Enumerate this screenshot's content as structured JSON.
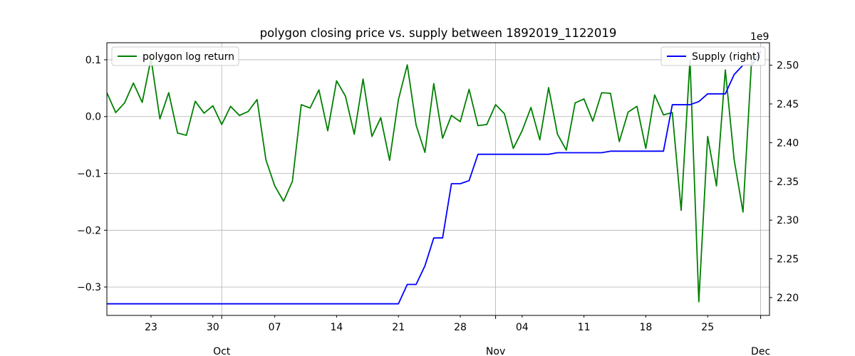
{
  "chart_data": {
    "type": "line",
    "title": "polygon closing price vs. supply between 1892019_1122019",
    "grid": true,
    "x_start": "2019-09-18",
    "x_end": "2019-12-02",
    "xlim": [
      "2019-09-18",
      "2019-12-02"
    ],
    "x_minor_ticks": [
      {
        "date": "2019-09-23",
        "label": "23"
      },
      {
        "date": "2019-09-30",
        "label": "30"
      },
      {
        "date": "2019-10-07",
        "label": "07"
      },
      {
        "date": "2019-10-14",
        "label": "14"
      },
      {
        "date": "2019-10-21",
        "label": "21"
      },
      {
        "date": "2019-10-28",
        "label": "28"
      },
      {
        "date": "2019-11-04",
        "label": "04"
      },
      {
        "date": "2019-11-11",
        "label": "11"
      },
      {
        "date": "2019-11-18",
        "label": "18"
      },
      {
        "date": "2019-11-25",
        "label": "25"
      }
    ],
    "x_major_ticks": [
      {
        "date": "2019-10-01",
        "label": "Oct"
      },
      {
        "date": "2019-11-01",
        "label": "Nov"
      },
      {
        "date": "2019-12-01",
        "label": "Dec"
      }
    ],
    "y_left": {
      "ylim": [
        -0.35,
        0.13
      ],
      "ticks": [
        0.1,
        0.0,
        -0.1,
        -0.2,
        -0.3
      ],
      "tick_labels": [
        "0.1",
        "0.0",
        "−0.1",
        "−0.2",
        "−0.3"
      ]
    },
    "y_right": {
      "ylim": [
        2.177,
        2.529
      ],
      "ticks": [
        2.2,
        2.25,
        2.3,
        2.35,
        2.4,
        2.45,
        2.5
      ],
      "tick_labels": [
        "2.20",
        "2.25",
        "2.30",
        "2.35",
        "2.40",
        "2.45",
        "2.50"
      ],
      "offset_label": "1e9"
    },
    "series": [
      {
        "name": "polygon log return",
        "axis": "left",
        "color": "#008000",
        "legend_position": "upper left",
        "values": [
          0.042,
          0.007,
          0.024,
          0.059,
          0.025,
          0.102,
          -0.004,
          0.042,
          -0.029,
          -0.033,
          0.027,
          0.006,
          0.019,
          -0.014,
          0.018,
          0.002,
          0.009,
          0.03,
          -0.076,
          -0.122,
          -0.149,
          -0.114,
          0.021,
          0.015,
          0.047,
          -0.025,
          0.063,
          0.036,
          -0.031,
          0.066,
          -0.035,
          -0.002,
          -0.077,
          0.03,
          0.091,
          -0.015,
          -0.063,
          0.058,
          -0.038,
          0.002,
          -0.009,
          0.048,
          -0.016,
          -0.014,
          0.021,
          0.005,
          -0.056,
          -0.025,
          0.016,
          -0.041,
          0.051,
          -0.031,
          -0.059,
          0.024,
          0.031,
          -0.008,
          0.042,
          0.041,
          -0.044,
          0.008,
          0.018,
          -0.056,
          0.038,
          0.003,
          0.007,
          -0.165,
          0.1,
          -0.326,
          -0.035,
          -0.122,
          0.082,
          -0.076,
          -0.168,
          0.106
        ]
      },
      {
        "name": "Supply (right)",
        "axis": "right",
        "color": "#0000ff",
        "legend_position": "upper right",
        "values": [
          2.192,
          2.192,
          2.192,
          2.192,
          2.192,
          2.192,
          2.192,
          2.192,
          2.192,
          2.192,
          2.192,
          2.192,
          2.192,
          2.192,
          2.192,
          2.192,
          2.192,
          2.192,
          2.192,
          2.192,
          2.192,
          2.192,
          2.192,
          2.192,
          2.192,
          2.192,
          2.192,
          2.192,
          2.192,
          2.192,
          2.192,
          2.192,
          2.192,
          2.192,
          2.217,
          2.217,
          2.241,
          2.277,
          2.277,
          2.347,
          2.347,
          2.351,
          2.385,
          2.385,
          2.385,
          2.385,
          2.385,
          2.385,
          2.385,
          2.385,
          2.385,
          2.387,
          2.387,
          2.387,
          2.387,
          2.387,
          2.387,
          2.389,
          2.389,
          2.389,
          2.389,
          2.389,
          2.389,
          2.389,
          2.449,
          2.449,
          2.449,
          2.453,
          2.463,
          2.463,
          2.463,
          2.488,
          2.5,
          2.5,
          2.518
        ]
      }
    ]
  }
}
